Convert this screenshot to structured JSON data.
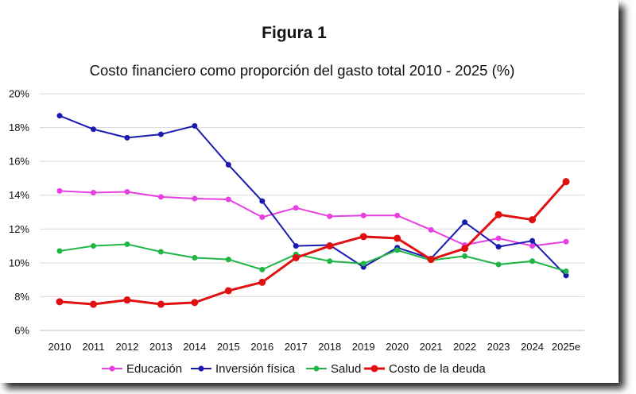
{
  "figure_label": "Figura 1",
  "chart_data": {
    "type": "line",
    "title": "Costo financiero como proporción del gasto total 2010 - 2025 (%)",
    "xlabel": "",
    "ylabel": "",
    "categories": [
      "2010",
      "2011",
      "2012",
      "2013",
      "2014",
      "2015",
      "2016",
      "2017",
      "2018",
      "2019",
      "2020",
      "2021",
      "2022",
      "2023",
      "2024",
      "2025e"
    ],
    "ylim": [
      6,
      20
    ],
    "yticks": [
      "6%",
      "8%",
      "10%",
      "12%",
      "14%",
      "16%",
      "18%",
      "20%"
    ],
    "grid": true,
    "legend_position": "bottom",
    "series": [
      {
        "name": "Educación",
        "color": "#e83fe3",
        "values": [
          14.25,
          14.15,
          14.2,
          13.9,
          13.8,
          13.75,
          12.7,
          13.25,
          12.75,
          12.8,
          12.8,
          11.95,
          11.05,
          11.45,
          11.0,
          11.25
        ]
      },
      {
        "name": "Inversión física",
        "color": "#1a1aaf",
        "values": [
          18.7,
          17.9,
          17.4,
          17.6,
          18.1,
          15.8,
          13.65,
          11.0,
          11.05,
          9.75,
          10.9,
          10.25,
          12.4,
          10.95,
          11.3,
          9.25
        ]
      },
      {
        "name": "Salud",
        "color": "#1fb646",
        "values": [
          10.7,
          11.0,
          11.1,
          10.65,
          10.3,
          10.2,
          9.6,
          10.5,
          10.1,
          9.95,
          10.75,
          10.15,
          10.4,
          9.9,
          10.1,
          9.5
        ]
      },
      {
        "name": "Costo de la deuda",
        "color": "#e01010",
        "values": [
          7.7,
          7.55,
          7.8,
          7.55,
          7.65,
          8.35,
          8.85,
          10.3,
          11.0,
          11.55,
          11.45,
          10.2,
          10.85,
          12.85,
          12.55,
          14.8
        ]
      }
    ]
  }
}
